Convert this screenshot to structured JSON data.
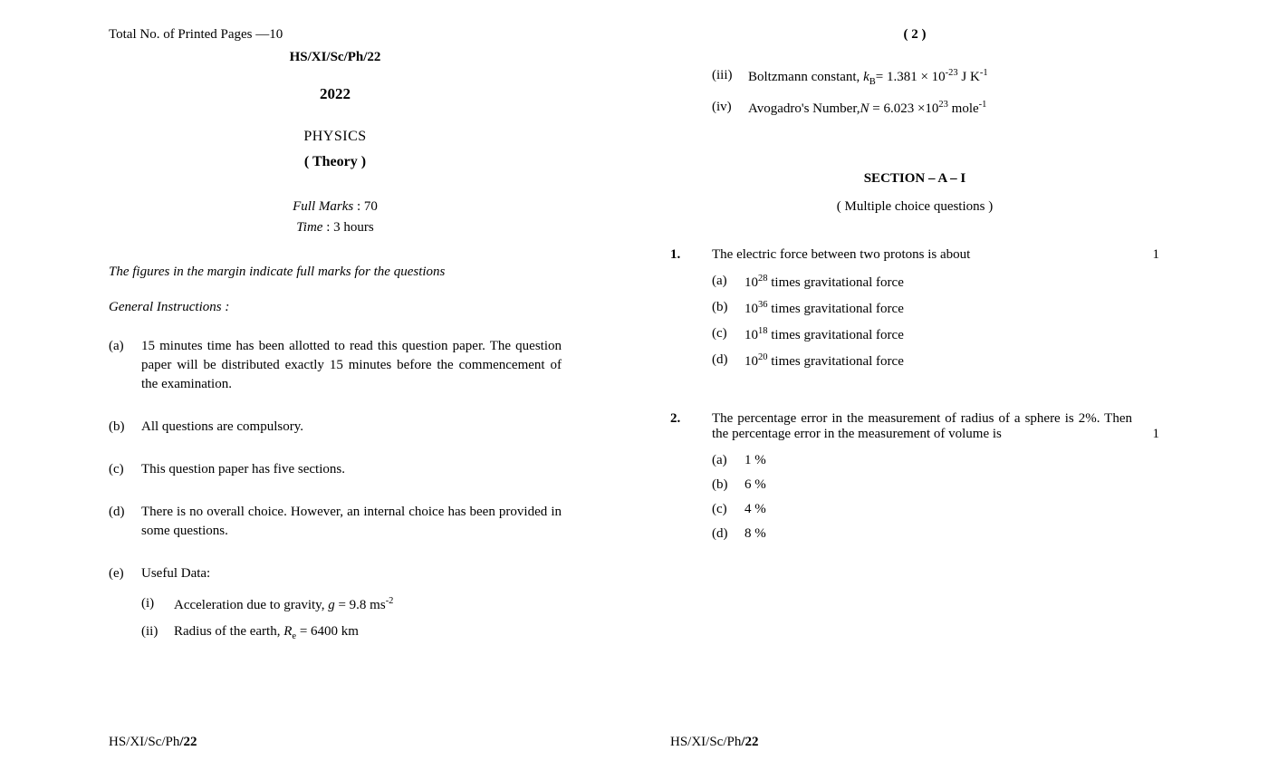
{
  "left": {
    "printed_pages": "Total No. of Printed Pages —10",
    "paper_code": "HS/XI/Sc/Ph/22",
    "year": "2022",
    "subject": "PHYSICS",
    "theory": "( Theory )",
    "full_marks_label": "Full Marks",
    "full_marks_value": " : 70",
    "time_label": "Time",
    "time_value": " : 3 hours",
    "rubric": "The figures in the margin indicate full marks for the questions",
    "gen_instr": "General Instructions :",
    "instr": [
      {
        "label": "(a)",
        "body": "15 minutes time has been allotted to read this question paper. The question paper will be distributed exactly 15 minutes before the commencement of the examination."
      },
      {
        "label": "(b)",
        "body": "All questions are compulsory."
      },
      {
        "label": "(c)",
        "body": "This question paper has five sections."
      },
      {
        "label": "(d)",
        "body": "There is no overall choice. However, an internal choice has been provided in some questions."
      },
      {
        "label": "(e)",
        "body": "Useful Data:"
      }
    ],
    "useful_data": [
      {
        "label": "(i)",
        "pre": "Acceleration due to gravity, ",
        "sym": "g",
        "post": " = 9.8 ms",
        "sup": "-2"
      },
      {
        "label": "(ii)",
        "pre": "Radius of the earth, ",
        "sym": "R",
        "sub": "e",
        "post": " = 6400 km"
      }
    ],
    "footer_pre": "HS/XI/Sc/Ph",
    "footer_bold": "/22"
  },
  "right": {
    "page_num": "( 2 )",
    "useful_data_cont": [
      {
        "label": "(iii)",
        "pre": "Boltzmann constant, ",
        "sym": "k",
        "sub": "B",
        "post1": "= 1.381 × 10",
        "sup1": "-23",
        "post2": " J K",
        "sup2": "-1"
      },
      {
        "label": "(iv)",
        "pre": "Avogadro's Number,",
        "sym": "N",
        "post1": " = 6.023 ×10",
        "sup1": "23",
        "post2": " mole",
        "sup2": "-1"
      }
    ],
    "section_head": "SECTION – A – I",
    "section_sub": "( Multiple choice questions )",
    "questions": [
      {
        "num": "1.",
        "body": "The electric force between two protons is about",
        "marks": "1",
        "options": [
          {
            "label": "(a)",
            "pre": "10",
            "sup": "28",
            "post": " times gravitational force"
          },
          {
            "label": "(b)",
            "pre": "10",
            "sup": "36",
            "post": " times gravitational force"
          },
          {
            "label": "(c)",
            "pre": "10",
            "sup": "18",
            "post": " times gravitational force"
          },
          {
            "label": "(d)",
            "pre": "10",
            "sup": "20",
            "post": " times gravitational force"
          }
        ]
      },
      {
        "num": "2.",
        "body": "The percentage error in the measurement of radius of a sphere is 2%. Then the percentage error in the measurement of volume is",
        "marks": "1",
        "options": [
          {
            "label": "(a)",
            "text": "1 %"
          },
          {
            "label": "(b)",
            "text": "6 %"
          },
          {
            "label": "(c)",
            "text": "4 %"
          },
          {
            "label": "(d)",
            "text": "8 %"
          }
        ]
      }
    ],
    "footer_pre": "HS/XI/Sc/Ph",
    "footer_bold": "/22"
  }
}
